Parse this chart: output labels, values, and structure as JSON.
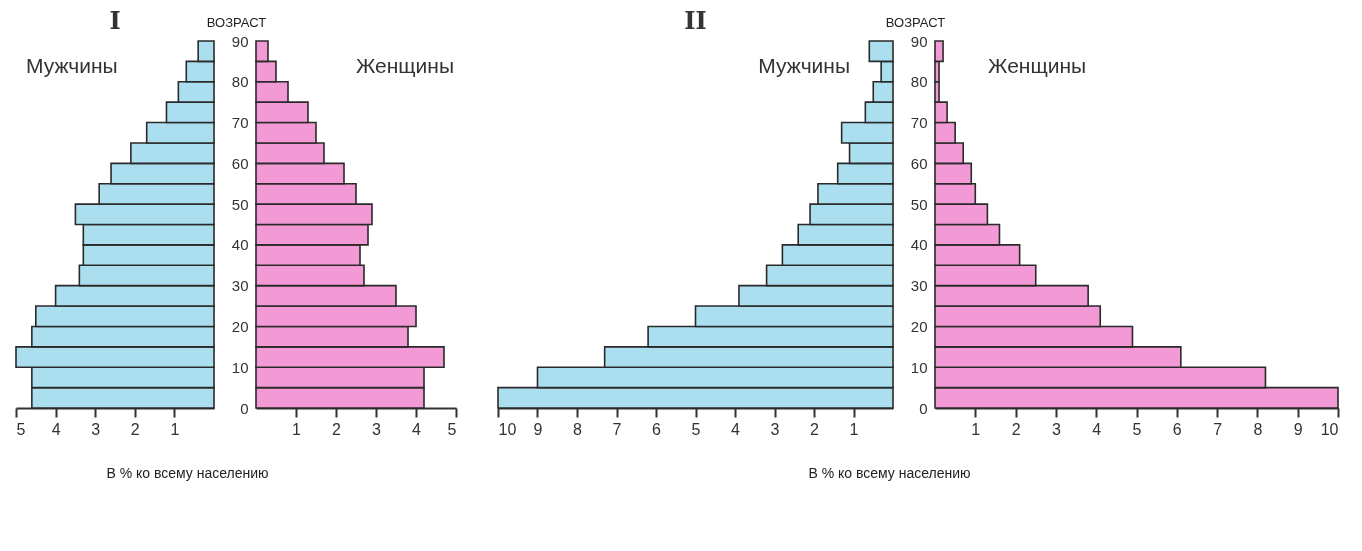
{
  "chart_data": [
    {
      "type": "bar",
      "orientation": "horizontal",
      "title": "I",
      "xlabel": "В % ко всему населению",
      "x": [
        2.5,
        7.5,
        12.5,
        17.5,
        22.5,
        27.5,
        32.5,
        37.5,
        42.5,
        47.5,
        52.5,
        57.5,
        62.5,
        67.5,
        72.5,
        77.5,
        82.5,
        87.5
      ],
      "ylim": [
        0,
        90
      ],
      "yticks": [
        0,
        10,
        20,
        30,
        40,
        50,
        60,
        70,
        80,
        90
      ],
      "xlim": [
        5,
        0
      ],
      "xticks": [
        5,
        4,
        3,
        2,
        1
      ],
      "tick_labels": "x",
      "series": [
        {
          "name": "Мужчины",
          "color": "#abdff0",
          "values": [
            4.6,
            4.6,
            5.0,
            4.6,
            4.5,
            4.0,
            3.4,
            3.3,
            3.3,
            3.5,
            2.9,
            2.6,
            2.1,
            1.7,
            1.2,
            0.9,
            0.7,
            0.4
          ]
        }
      ]
    },
    {
      "type": "bar",
      "orientation": "horizontal",
      "ylabel": "ВОЗРАСТ",
      "x": [
        2.5,
        7.5,
        12.5,
        17.5,
        22.5,
        27.5,
        32.5,
        37.5,
        42.5,
        47.5,
        52.5,
        57.5,
        62.5,
        67.5,
        72.5,
        77.5,
        82.5,
        87.5
      ],
      "ylim": [
        0,
        90
      ],
      "yticks": [
        0,
        10,
        20,
        30,
        40,
        50,
        60,
        70,
        80,
        90
      ],
      "xlim": [
        0,
        5
      ],
      "xticks": [
        1,
        2,
        3,
        4,
        5
      ],
      "series": [
        {
          "name": "Женщины",
          "color": "#f39ad6",
          "values": [
            4.2,
            4.2,
            4.7,
            3.8,
            4.0,
            3.5,
            2.7,
            2.6,
            2.8,
            2.9,
            2.5,
            2.2,
            1.7,
            1.5,
            1.3,
            0.8,
            0.5,
            0.3
          ]
        }
      ]
    },
    {
      "type": "bar",
      "orientation": "horizontal",
      "title": "II",
      "xlabel": "В % ко всему населению",
      "x": [
        2.5,
        7.5,
        12.5,
        17.5,
        22.5,
        27.5,
        32.5,
        37.5,
        42.5,
        47.5,
        52.5,
        57.5,
        62.5,
        67.5,
        72.5,
        77.5,
        82.5,
        87.5
      ],
      "ylim": [
        0,
        90
      ],
      "yticks": [
        0,
        10,
        20,
        30,
        40,
        50,
        60,
        70,
        80,
        90
      ],
      "xlim": [
        10,
        0
      ],
      "xticks": [
        10,
        9,
        8,
        7,
        6,
        5,
        4,
        3,
        2,
        1
      ],
      "tick_labels": "x",
      "series": [
        {
          "name": "Мужчины",
          "color": "#abdff0",
          "values": [
            10,
            9.0,
            7.3,
            6.2,
            5.0,
            3.9,
            3.2,
            2.8,
            2.4,
            2.1,
            1.9,
            1.4,
            1.1,
            1.3,
            0.7,
            0.5,
            0.3,
            0.6
          ]
        }
      ]
    },
    {
      "type": "bar",
      "orientation": "horizontal",
      "ylabel": "ВОЗРАСТ",
      "x": [
        2.5,
        7.5,
        12.5,
        17.5,
        22.5,
        27.5,
        32.5,
        37.5,
        42.5,
        47.5,
        52.5,
        57.5,
        62.5,
        67.5,
        72.5,
        77.5,
        82.5,
        87.5
      ],
      "ylim": [
        0,
        90
      ],
      "yticks": [
        0,
        10,
        20,
        30,
        40,
        50,
        60,
        70,
        80,
        90
      ],
      "xlim": [
        0,
        10
      ],
      "xticks": [
        1,
        2,
        3,
        4,
        5,
        6,
        7,
        8,
        9,
        10
      ],
      "series": [
        {
          "name": "Женщины",
          "color": "#f39ad6",
          "values": [
            10,
            8.2,
            6.1,
            4.9,
            4.1,
            3.8,
            2.5,
            2.1,
            1.6,
            1.3,
            1.0,
            0.9,
            0.7,
            0.5,
            0.3,
            0.1,
            0.1,
            0.2
          ]
        }
      ]
    }
  ]
}
